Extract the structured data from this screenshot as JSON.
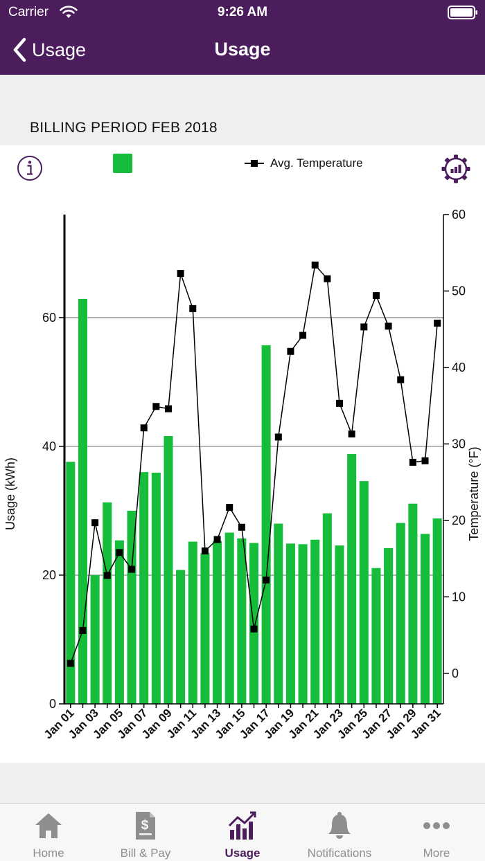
{
  "status": {
    "carrier": "Carrier",
    "time": "9:26 AM"
  },
  "nav": {
    "back_label": "Usage",
    "title": "Usage"
  },
  "billing": {
    "period_label": "BILLING PERIOD FEB 2018"
  },
  "legend": {
    "usage_label": "",
    "temperature_label": "Avg. Temperature"
  },
  "colors": {
    "brand": "#4c1d5c",
    "bar": "#16bd3a",
    "line": "#000000",
    "grid": "#9a9a9a",
    "inactive_tab": "#8e8e8e"
  },
  "chart_data": {
    "type": "bar",
    "title": "",
    "xlabel": "",
    "ylabel": "Usage (kWh)",
    "y2label": "Temperature (°F)",
    "ylim": [
      0,
      76
    ],
    "y2lim": [
      -4,
      60
    ],
    "yticks": [
      0,
      20,
      40,
      60
    ],
    "y2ticks": [
      0,
      10,
      20,
      30,
      40,
      50,
      60
    ],
    "grid": true,
    "legend_position": "top",
    "categories": [
      "Jan 01",
      "Jan 02",
      "Jan 03",
      "Jan 04",
      "Jan 05",
      "Jan 06",
      "Jan 07",
      "Jan 08",
      "Jan 09",
      "Jan 10",
      "Jan 11",
      "Jan 12",
      "Jan 13",
      "Jan 14",
      "Jan 15",
      "Jan 16",
      "Jan 17",
      "Jan 18",
      "Jan 19",
      "Jan 20",
      "Jan 21",
      "Jan 22",
      "Jan 23",
      "Jan 24",
      "Jan 25",
      "Jan 26",
      "Jan 27",
      "Jan 28",
      "Jan 29",
      "Jan 30",
      "Jan 31"
    ],
    "tick_labels": [
      "Jan 01",
      "Jan 03",
      "Jan 05",
      "Jan 07",
      "Jan 09",
      "Jan 11",
      "Jan 13",
      "Jan 15",
      "Jan 17",
      "Jan 19",
      "Jan 21",
      "Jan 23",
      "Jan 25",
      "Jan 27",
      "Jan 29",
      "Jan 31"
    ],
    "series": [
      {
        "type": "bar",
        "axis": "left",
        "values": [
          37.6,
          62.9,
          20.0,
          31.3,
          25.4,
          30.0,
          36.0,
          35.9,
          41.6,
          20.8,
          25.2,
          23.4,
          25.3,
          26.6,
          25.7,
          25.0,
          55.7,
          28.0,
          24.9,
          24.8,
          25.5,
          29.6,
          24.6,
          38.8,
          34.6,
          21.1,
          24.2,
          28.1,
          31.1,
          26.4,
          28.8
        ]
      },
      {
        "type": "line",
        "name": "Avg. Temperature",
        "axis": "right",
        "marker": "square",
        "values": [
          1.3,
          5.6,
          19.7,
          12.8,
          15.8,
          13.6,
          32.1,
          34.9,
          34.6,
          52.3,
          47.7,
          16.0,
          17.5,
          21.7,
          19.1,
          5.8,
          12.2,
          30.9,
          42.1,
          44.2,
          53.4,
          51.6,
          35.3,
          31.3,
          45.3,
          49.4,
          45.4,
          38.4,
          27.6,
          27.8,
          45.8
        ]
      }
    ]
  },
  "tabs": [
    {
      "label": "Home",
      "icon": "home-icon",
      "active": false
    },
    {
      "label": "Bill & Pay",
      "icon": "bill-icon",
      "active": false
    },
    {
      "label": "Usage",
      "icon": "usage-chart-icon",
      "active": true
    },
    {
      "label": "Notifications",
      "icon": "bell-icon",
      "active": false
    },
    {
      "label": "More",
      "icon": "more-dots-icon",
      "active": false
    }
  ]
}
